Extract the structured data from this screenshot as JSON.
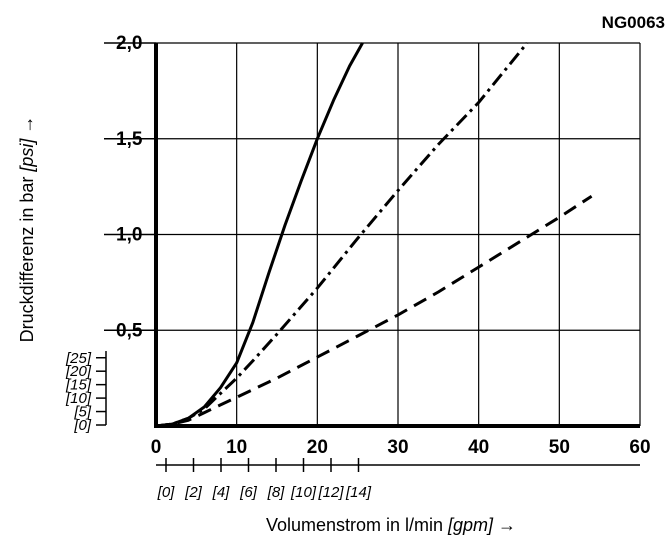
{
  "code": "NG0063",
  "chart_data": {
    "type": "line",
    "xlabel_text": "Volumenstrom in l/min ",
    "xlabel_unit": "[gpm]",
    "xlabel_arrow": " →",
    "ylabel_text": "Druckdifferenz in bar ",
    "ylabel_unit": "[psi]",
    "ylabel_arrow": " →",
    "xlim": [
      0,
      60
    ],
    "ylim": [
      0,
      2.0
    ],
    "x_ticks": [
      0,
      10,
      20,
      30,
      40,
      50,
      60
    ],
    "x_tick_labels": [
      "0",
      "10",
      "20",
      "30",
      "40",
      "50",
      "60"
    ],
    "y_ticks": [
      0.5,
      1.0,
      1.5,
      2.0
    ],
    "y_tick_labels": [
      "0,5",
      "1,0",
      "1,5",
      "2,0"
    ],
    "x2_ticks": [
      0,
      2,
      4,
      6,
      8,
      10,
      12,
      14
    ],
    "x2_tick_labels": [
      "[0]",
      "[2]",
      "[4]",
      "[6]",
      "[8]",
      "[10]",
      "[12]",
      "[14]"
    ],
    "y2_ticks": [
      0,
      5,
      10,
      15,
      20,
      25
    ],
    "y2_tick_labels": [
      "[0]",
      "[5]",
      "[10]",
      "[15]",
      "[20]",
      "[25]"
    ],
    "grid": true,
    "series": [
      {
        "style": "solid",
        "x": [
          0,
          2,
          4,
          6,
          8,
          10,
          12,
          14,
          16,
          18,
          20,
          22,
          24,
          25.6
        ],
        "y": [
          0,
          0.01,
          0.04,
          0.1,
          0.2,
          0.33,
          0.54,
          0.8,
          1.05,
          1.28,
          1.5,
          1.7,
          1.88,
          2.0
        ]
      },
      {
        "style": "dashdot",
        "x": [
          0,
          2,
          4,
          6,
          8,
          10,
          12,
          15,
          20,
          25,
          30,
          35,
          40,
          46
        ],
        "y": [
          0,
          0.01,
          0.04,
          0.09,
          0.17,
          0.25,
          0.34,
          0.48,
          0.72,
          0.98,
          1.23,
          1.47,
          1.69,
          2.0
        ]
      },
      {
        "style": "dashed",
        "x": [
          0,
          2,
          4,
          6,
          8,
          10,
          15,
          20,
          25,
          30,
          35,
          40,
          45,
          50,
          54
        ],
        "y": [
          0,
          0.01,
          0.03,
          0.07,
          0.11,
          0.15,
          0.25,
          0.36,
          0.47,
          0.58,
          0.7,
          0.83,
          0.96,
          1.09,
          1.2
        ]
      }
    ]
  }
}
